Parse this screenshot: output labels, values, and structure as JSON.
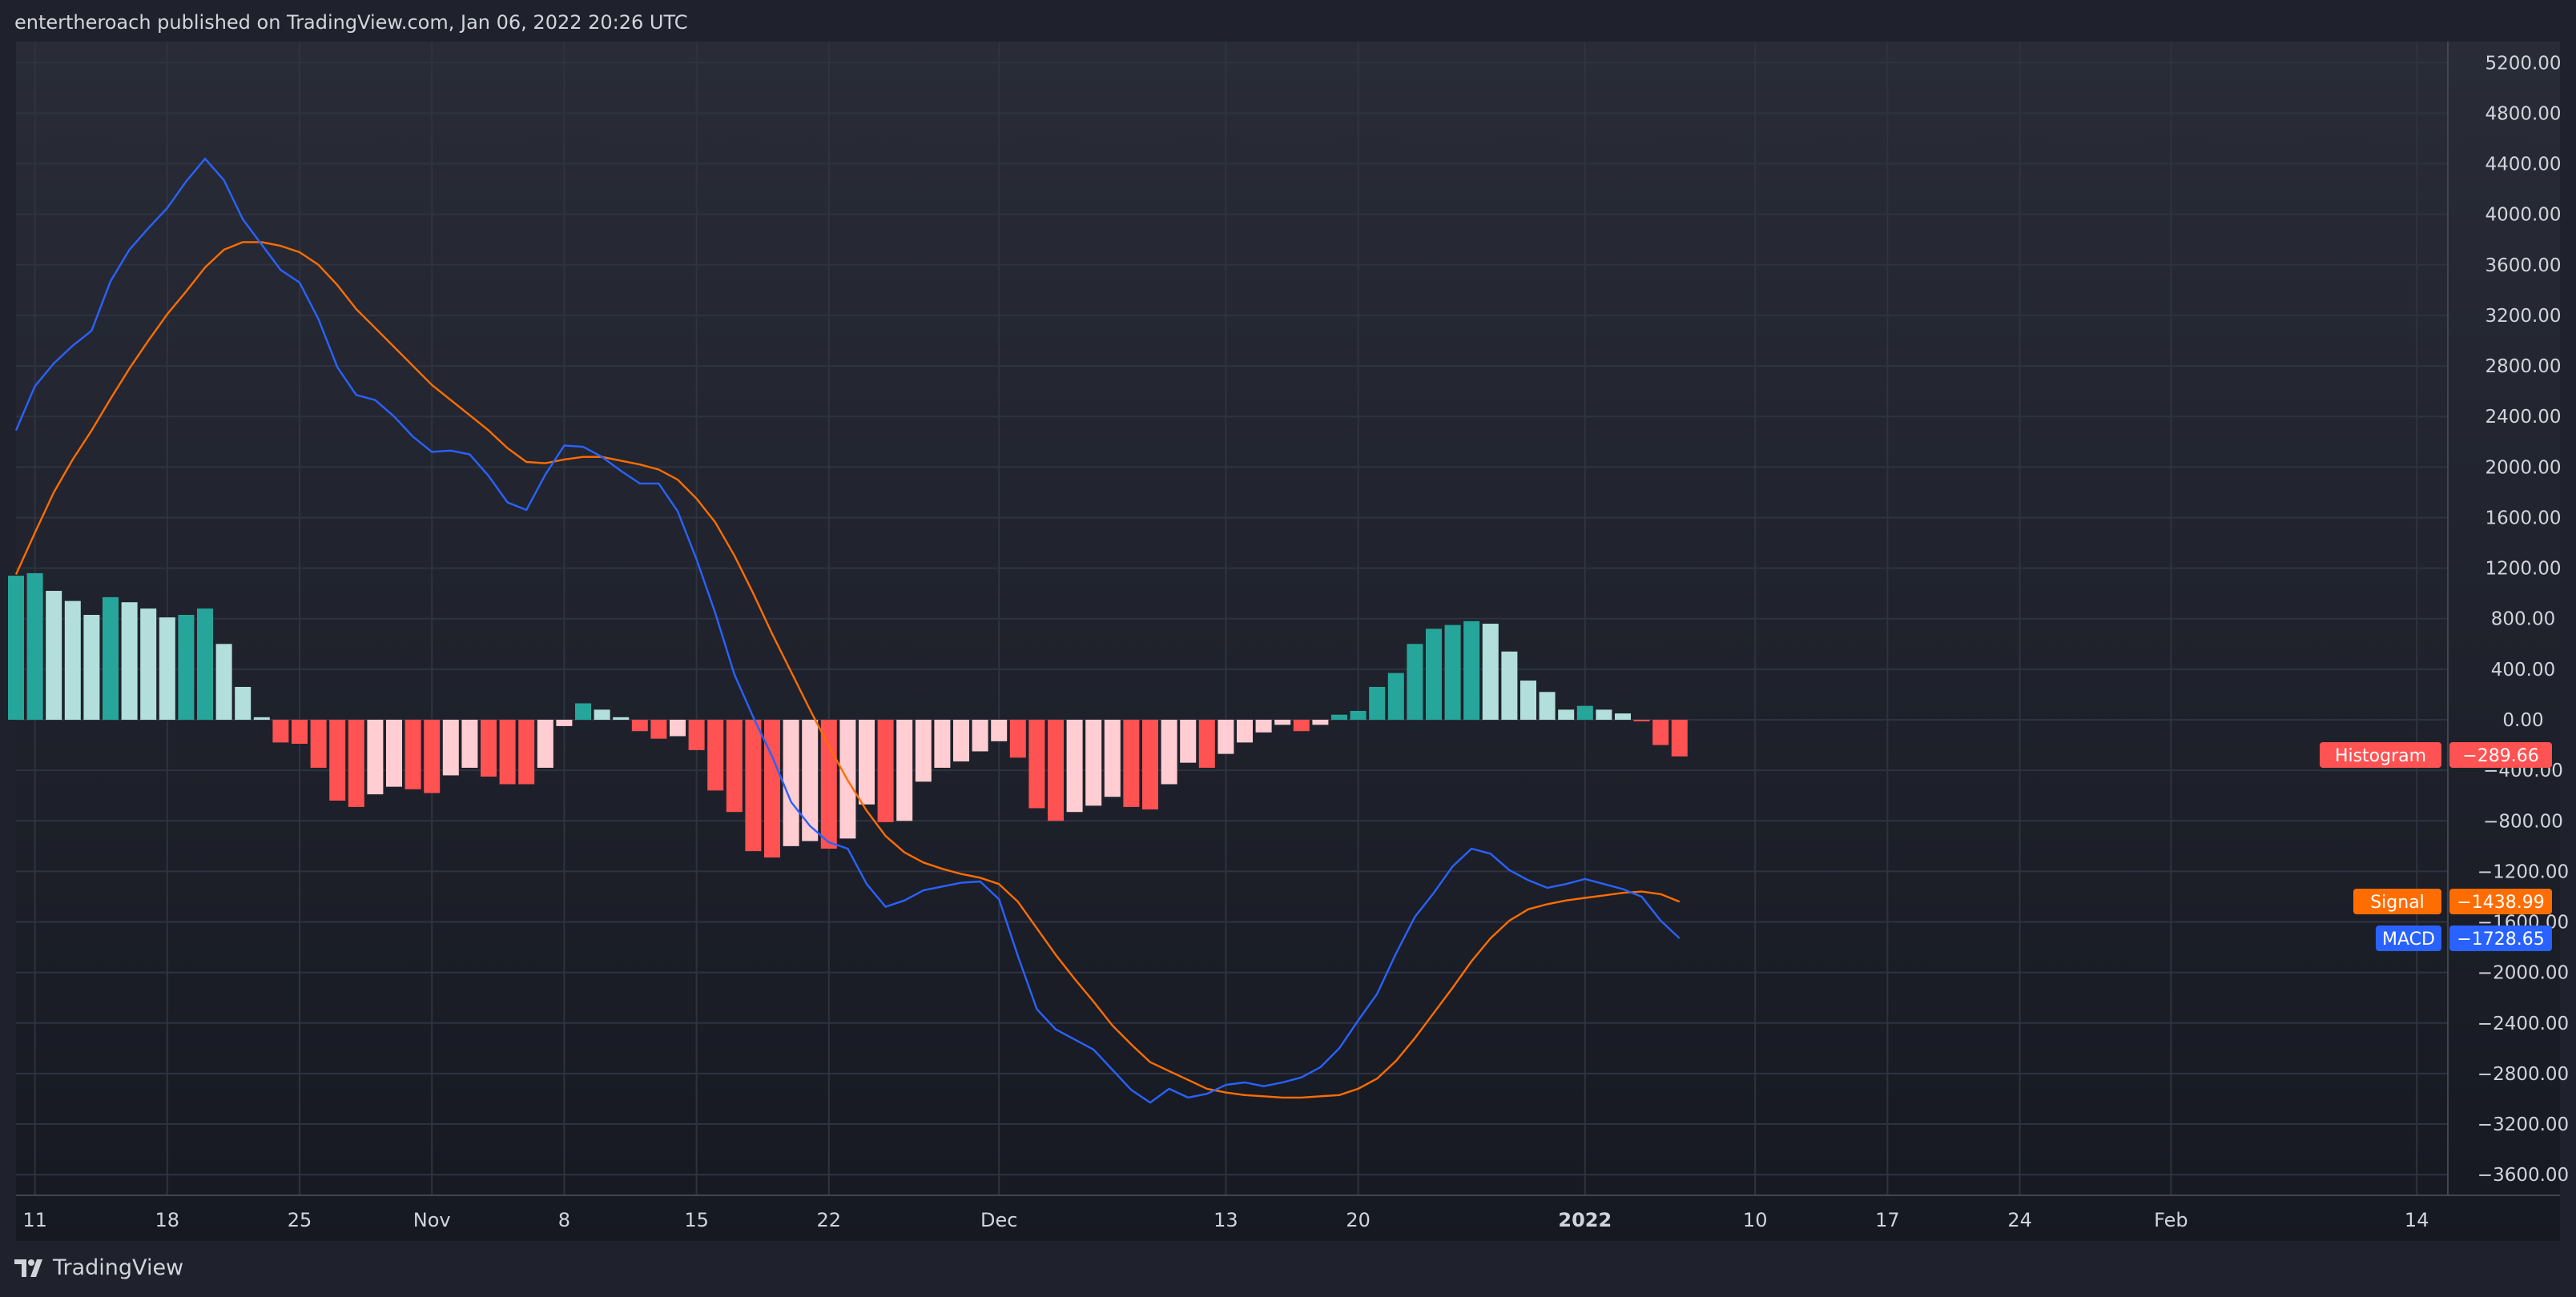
{
  "header": {
    "text": "entertheroach published on TradingView.com, Jan 06, 2022 20:26 UTC"
  },
  "footer": {
    "brand": "TradingView",
    "icon": "tradingview-logo-icon"
  },
  "colors": {
    "macd": "#2962ff",
    "signal": "#ff6d00",
    "hist_pos_strong": "#26a69a",
    "hist_pos_weak": "#b2dfdb",
    "hist_neg_strong": "#ff5252",
    "hist_neg_weak": "#ffcdd2",
    "grid": "#2f3340",
    "text": "#d1d4dc"
  },
  "chart_data": {
    "type": "bar",
    "title": "",
    "y_axis": {
      "min": -3800,
      "max": 5400,
      "ticks": [
        "5200.00",
        "4800.00",
        "4400.00",
        "4000.00",
        "3600.00",
        "3200.00",
        "2800.00",
        "2400.00",
        "2000.00",
        "1600.00",
        "1200.00",
        "800.00",
        "400.00",
        "0.00",
        "−400.00",
        "−800.00",
        "−1200.00",
        "−1600.00",
        "−2000.00",
        "−2400.00",
        "−2800.00",
        "−3200.00",
        "−3600.00"
      ],
      "tick_values": [
        5200,
        4800,
        4400,
        4000,
        3600,
        3200,
        2800,
        2400,
        2000,
        1600,
        1200,
        800,
        400,
        0,
        -400,
        -800,
        -1200,
        -1600,
        -2000,
        -2400,
        -2800,
        -3200,
        -3600
      ]
    },
    "x_axis": {
      "ticks": [
        {
          "label": "11",
          "index": 1,
          "bold": false
        },
        {
          "label": "18",
          "index": 8,
          "bold": false
        },
        {
          "label": "25",
          "index": 15,
          "bold": false
        },
        {
          "label": "Nov",
          "index": 22,
          "bold": false
        },
        {
          "label": "8",
          "index": 29,
          "bold": false
        },
        {
          "label": "15",
          "index": 36,
          "bold": false
        },
        {
          "label": "22",
          "index": 43,
          "bold": false
        },
        {
          "label": "Dec",
          "index": 52,
          "bold": false
        },
        {
          "label": "13",
          "index": 64,
          "bold": false
        },
        {
          "label": "20",
          "index": 71,
          "bold": false
        },
        {
          "label": "2022",
          "index": 83,
          "bold": true
        },
        {
          "label": "10",
          "index": 92,
          "bold": false
        },
        {
          "label": "17",
          "index": 99,
          "bold": false
        },
        {
          "label": "24",
          "index": 106,
          "bold": false
        },
        {
          "label": "Feb",
          "index": 114,
          "bold": false
        },
        {
          "label": "14",
          "index": 127,
          "bold": false
        }
      ]
    },
    "series": [
      {
        "name": "Histogram",
        "kind": "bar",
        "values": [
          1140,
          1160,
          1020,
          940,
          830,
          970,
          930,
          880,
          810,
          830,
          880,
          600,
          260,
          20,
          -180,
          -190,
          -380,
          -640,
          -690,
          -590,
          -530,
          -550,
          -580,
          -440,
          -380,
          -450,
          -510,
          -510,
          -380,
          -50,
          130,
          80,
          20,
          -90,
          -150,
          -130,
          -240,
          -560,
          -730,
          -1040,
          -1090,
          -1000,
          -960,
          -1020,
          -940,
          -670,
          -810,
          -800,
          -490,
          -380,
          -330,
          -250,
          -170,
          -300,
          -700,
          -800,
          -730,
          -680,
          -610,
          -690,
          -710,
          -510,
          -340,
          -380,
          -270,
          -180,
          -100,
          -40,
          -90,
          -40,
          40,
          70,
          260,
          370,
          600,
          720,
          750,
          780,
          760,
          540,
          310,
          220,
          80,
          110,
          80,
          50,
          -10,
          -200,
          -290
        ],
        "label": "Histogram",
        "value_label": "−289.66"
      },
      {
        "name": "Signal",
        "kind": "line",
        "values": [
          1150,
          1480,
          1800,
          2060,
          2290,
          2540,
          2780,
          3000,
          3210,
          3390,
          3580,
          3720,
          3780,
          3780,
          3750,
          3700,
          3600,
          3440,
          3250,
          3100,
          2950,
          2800,
          2650,
          2530,
          2410,
          2290,
          2150,
          2040,
          2030,
          2060,
          2080,
          2080,
          2050,
          2020,
          1980,
          1900,
          1750,
          1560,
          1300,
          1000,
          680,
          380,
          80,
          -210,
          -480,
          -720,
          -920,
          -1050,
          -1130,
          -1180,
          -1220,
          -1250,
          -1300,
          -1440,
          -1650,
          -1860,
          -2050,
          -2230,
          -2420,
          -2570,
          -2710,
          -2780,
          -2850,
          -2920,
          -2950,
          -2970,
          -2980,
          -2990,
          -2990,
          -2980,
          -2970,
          -2920,
          -2840,
          -2700,
          -2520,
          -2320,
          -2120,
          -1910,
          -1730,
          -1590,
          -1500,
          -1460,
          -1430,
          -1410,
          -1390,
          -1370,
          -1360,
          -1380,
          -1440
        ],
        "label": "Signal",
        "value_label": "−1438.99"
      },
      {
        "name": "MACD",
        "kind": "line",
        "values": [
          2290,
          2640,
          2820,
          2960,
          3080,
          3470,
          3720,
          3890,
          4050,
          4260,
          4440,
          4270,
          3960,
          3760,
          3560,
          3460,
          3170,
          2790,
          2570,
          2530,
          2400,
          2240,
          2120,
          2130,
          2100,
          1930,
          1720,
          1660,
          1940,
          2170,
          2160,
          2080,
          1970,
          1870,
          1870,
          1650,
          1270,
          840,
          360,
          20,
          -290,
          -650,
          -840,
          -970,
          -1020,
          -1300,
          -1480,
          -1430,
          -1350,
          -1320,
          -1290,
          -1280,
          -1420,
          -1870,
          -2290,
          -2450,
          -2530,
          -2610,
          -2770,
          -2930,
          -3030,
          -2920,
          -2990,
          -2960,
          -2890,
          -2870,
          -2900,
          -2870,
          -2830,
          -2750,
          -2600,
          -2380,
          -2170,
          -1850,
          -1560,
          -1370,
          -1160,
          -1020,
          -1060,
          -1190,
          -1270,
          -1330,
          -1300,
          -1260,
          -1300,
          -1340,
          -1400,
          -1590,
          -1730
        ],
        "label": "MACD",
        "value_label": "−1728.65"
      }
    ],
    "grid": true,
    "legend": "right-axis-labels"
  }
}
